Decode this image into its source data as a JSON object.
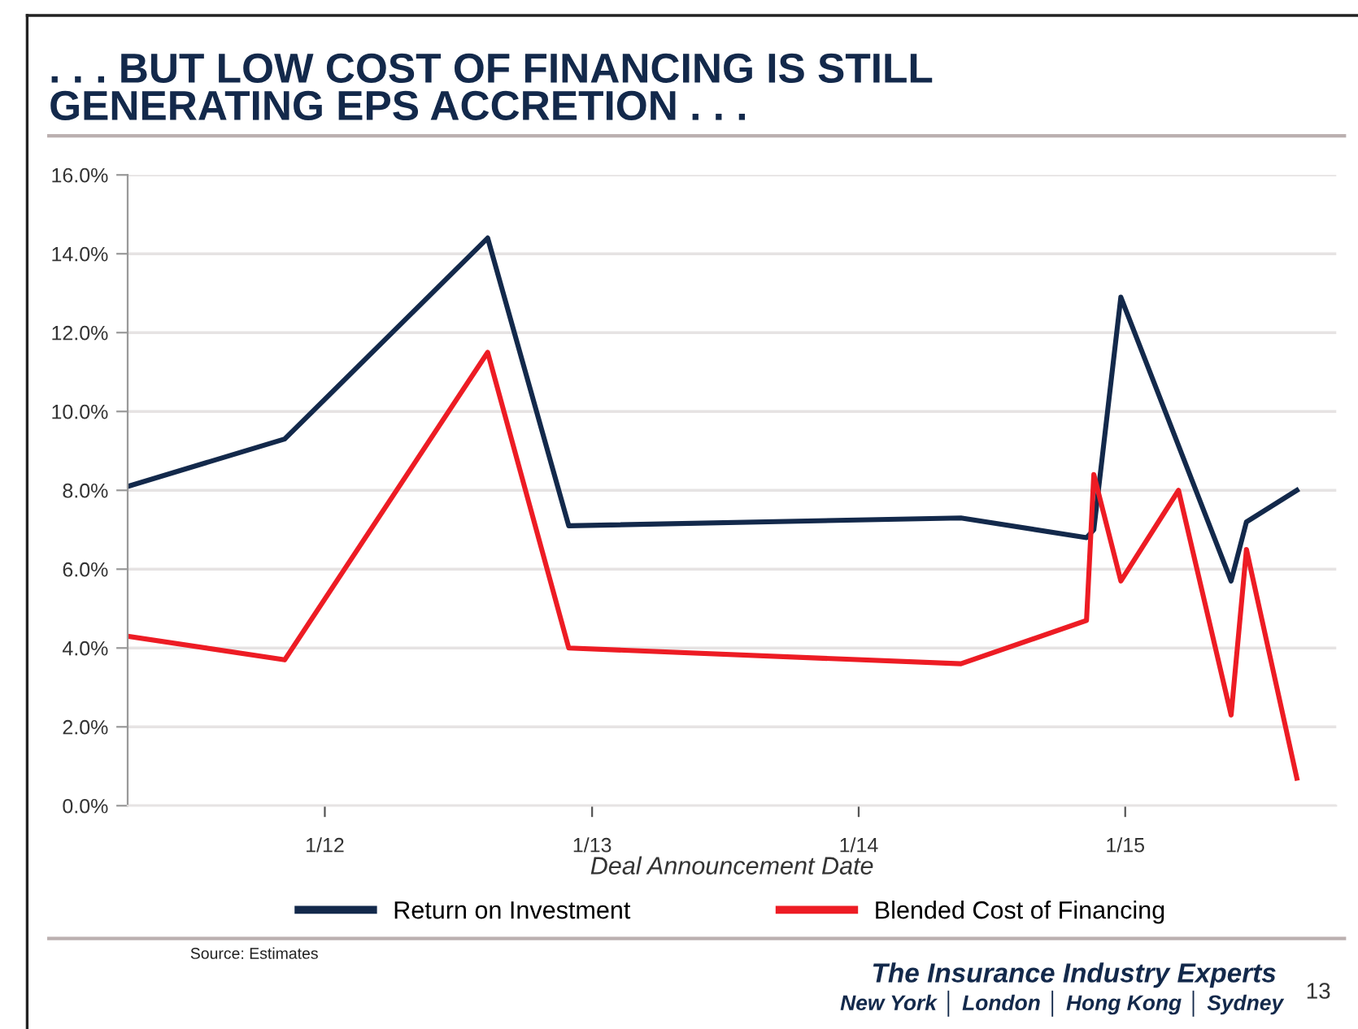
{
  "chart_data": {
    "type": "line",
    "title": ". . . BUT LOW COST OF FINANCING IS STILL\nGENERATING EPS ACCRETION . . .",
    "xlabel": "Deal Announcement Date",
    "series": [
      {
        "name": "Return on Investment",
        "color": "#13294b",
        "x": [
          "2011-04-06",
          "2011-11-07",
          "2012-08-11",
          "2012-11-30",
          "2014-05-21",
          "2014-11-09",
          "2014-11-19",
          "2014-12-26",
          "2015-05-26",
          "2015-06-16",
          "2015-08-24"
        ],
        "values": [
          8.1,
          9.3,
          14.4,
          7.1,
          7.3,
          6.8,
          7.0,
          12.9,
          5.7,
          7.2,
          8.0
        ]
      },
      {
        "name": "Blended Cost of Financing",
        "color": "#ed1c24",
        "x": [
          "2011-04-06",
          "2011-11-07",
          "2012-08-11",
          "2012-11-30",
          "2014-05-21",
          "2014-11-09",
          "2014-11-19",
          "2014-12-26",
          "2015-03-15",
          "2015-05-26",
          "2015-06-16",
          "2015-08-24"
        ],
        "values": [
          4.3,
          3.7,
          11.5,
          4.0,
          3.6,
          4.7,
          8.4,
          5.7,
          8.0,
          2.3,
          6.5,
          0.7
        ]
      }
    ],
    "xlim": [
      "2011-04-06",
      "2015-10-17"
    ],
    "xticks": [
      {
        "value": "2012-01-01",
        "label": "1/12"
      },
      {
        "value": "2013-01-01",
        "label": "1/13"
      },
      {
        "value": "2014-01-01",
        "label": "1/14"
      },
      {
        "value": "2015-01-01",
        "label": "1/15"
      }
    ],
    "ylim": [
      0,
      16
    ],
    "yticks": [
      {
        "value": 0,
        "label": "0.0%"
      },
      {
        "value": 2,
        "label": "2.0%"
      },
      {
        "value": 4,
        "label": "4.0%"
      },
      {
        "value": 6,
        "label": "6.0%"
      },
      {
        "value": 8,
        "label": "8.0%"
      },
      {
        "value": 10,
        "label": "10.0%"
      },
      {
        "value": 12,
        "label": "12.0%"
      },
      {
        "value": 14,
        "label": "14.0%"
      },
      {
        "value": 16,
        "label": "16.0%"
      }
    ],
    "grid": "y",
    "legend": "bottom",
    "marker": "none",
    "line_style": "solid",
    "annotations": [
      "Source: Estimates",
      "The Insurance Industry Experts",
      "New York │ London │ Hong Kong │ Sydney",
      "13"
    ]
  }
}
